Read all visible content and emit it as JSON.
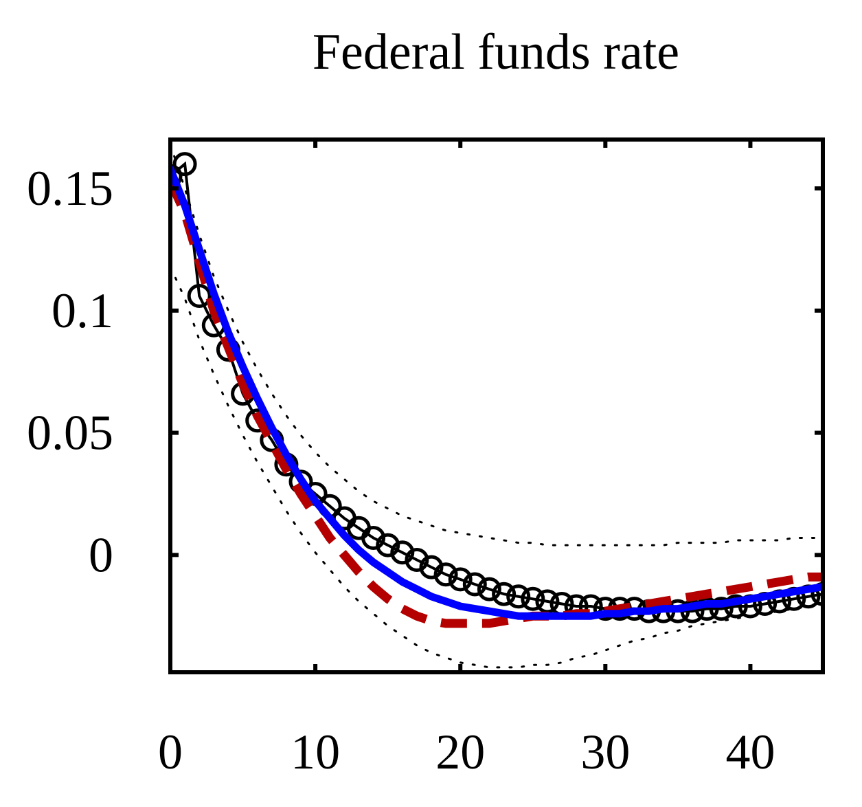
{
  "chart_data": {
    "type": "line",
    "title": "Federal funds rate",
    "xlabel": "",
    "ylabel": "",
    "xlim": [
      0,
      45
    ],
    "ylim": [
      -0.048,
      0.17
    ],
    "x_ticks": [
      0,
      10,
      20,
      30,
      40
    ],
    "x_tick_labels": [
      "0",
      "10",
      "20",
      "30",
      "40"
    ],
    "y_ticks": [
      0,
      0.05,
      0.1,
      0.15
    ],
    "y_tick_labels": [
      "0",
      "0.05",
      "0.1",
      "0.15"
    ],
    "grid": false,
    "legend": "none",
    "series": [
      {
        "style": "black-line-circles",
        "color": "#000000",
        "x": [
          0,
          1,
          2,
          3,
          4,
          5,
          6,
          7,
          8,
          9,
          10,
          11,
          12,
          13,
          14,
          15,
          16,
          17,
          18,
          19,
          20,
          21,
          22,
          23,
          24,
          25,
          26,
          27,
          28,
          29,
          30,
          31,
          32,
          33,
          34,
          35,
          36,
          37,
          38,
          39,
          40,
          41,
          42,
          43,
          44,
          45
        ],
        "values": [
          0.155,
          0.16,
          0.106,
          0.094,
          0.084,
          0.066,
          0.055,
          0.047,
          0.037,
          0.03,
          0.025,
          0.02,
          0.015,
          0.011,
          0.007,
          0.004,
          0.001,
          -0.002,
          -0.005,
          -0.008,
          -0.01,
          -0.012,
          -0.014,
          -0.016,
          -0.017,
          -0.018,
          -0.019,
          -0.02,
          -0.021,
          -0.021,
          -0.022,
          -0.022,
          -0.022,
          -0.023,
          -0.023,
          -0.023,
          -0.023,
          -0.022,
          -0.022,
          -0.021,
          -0.021,
          -0.02,
          -0.019,
          -0.018,
          -0.017,
          -0.016
        ]
      },
      {
        "style": "red-dashed",
        "color": "#b40000",
        "x": [
          0,
          1,
          2,
          3,
          4,
          5,
          6,
          7,
          8,
          9,
          10,
          11,
          12,
          13,
          14,
          15,
          16,
          17,
          18,
          19,
          20,
          21,
          22,
          23,
          24,
          25,
          26,
          27,
          28,
          29,
          30,
          31,
          32,
          33,
          34,
          35,
          36,
          37,
          38,
          39,
          40,
          41,
          42,
          43,
          44,
          45
        ],
        "values": [
          0.153,
          0.14,
          0.12,
          0.1,
          0.085,
          0.07,
          0.057,
          0.046,
          0.035,
          0.025,
          0.016,
          0.007,
          0.0,
          -0.007,
          -0.013,
          -0.018,
          -0.022,
          -0.025,
          -0.027,
          -0.028,
          -0.028,
          -0.028,
          -0.028,
          -0.027,
          -0.026,
          -0.025,
          -0.025,
          -0.025,
          -0.024,
          -0.024,
          -0.023,
          -0.022,
          -0.021,
          -0.02,
          -0.019,
          -0.018,
          -0.017,
          -0.016,
          -0.015,
          -0.014,
          -0.013,
          -0.012,
          -0.011,
          -0.01,
          -0.009,
          -0.009
        ]
      },
      {
        "style": "blue-solid",
        "color": "#0000ff",
        "x": [
          0,
          1,
          2,
          3,
          4,
          5,
          6,
          7,
          8,
          9,
          10,
          11,
          12,
          13,
          14,
          15,
          16,
          17,
          18,
          19,
          20,
          21,
          22,
          23,
          24,
          25,
          26,
          27,
          28,
          29,
          30,
          31,
          32,
          33,
          34,
          35,
          36,
          37,
          38,
          39,
          40,
          41,
          42,
          43,
          44,
          45
        ],
        "values": [
          0.158,
          0.143,
          0.125,
          0.107,
          0.091,
          0.077,
          0.064,
          0.052,
          0.041,
          0.031,
          0.022,
          0.015,
          0.008,
          0.002,
          -0.003,
          -0.007,
          -0.011,
          -0.014,
          -0.017,
          -0.019,
          -0.021,
          -0.022,
          -0.023,
          -0.024,
          -0.025,
          -0.025,
          -0.025,
          -0.025,
          -0.025,
          -0.025,
          -0.024,
          -0.024,
          -0.023,
          -0.023,
          -0.022,
          -0.022,
          -0.021,
          -0.02,
          -0.02,
          -0.019,
          -0.018,
          -0.017,
          -0.016,
          -0.015,
          -0.014,
          -0.013
        ]
      },
      {
        "style": "black-dotted-upper",
        "color": "#000000",
        "x": [
          0,
          1,
          2,
          3,
          4,
          5,
          6,
          7,
          8,
          9,
          10,
          11,
          12,
          13,
          14,
          15,
          16,
          17,
          18,
          19,
          20,
          21,
          22,
          23,
          24,
          25,
          26,
          27,
          28,
          29,
          30,
          31,
          32,
          33,
          34,
          35,
          36,
          37,
          38,
          39,
          40,
          41,
          42,
          43,
          44,
          45
        ],
        "values": [
          0.168,
          0.15,
          0.131,
          0.114,
          0.1,
          0.087,
          0.076,
          0.066,
          0.057,
          0.049,
          0.042,
          0.036,
          0.031,
          0.026,
          0.022,
          0.019,
          0.016,
          0.014,
          0.012,
          0.01,
          0.009,
          0.008,
          0.007,
          0.006,
          0.005,
          0.005,
          0.004,
          0.004,
          0.004,
          0.004,
          0.004,
          0.004,
          0.004,
          0.004,
          0.004,
          0.005,
          0.005,
          0.005,
          0.005,
          0.006,
          0.006,
          0.006,
          0.006,
          0.007,
          0.007,
          0.007
        ]
      },
      {
        "style": "black-dotted-lower",
        "color": "#000000",
        "x": [
          0,
          1,
          2,
          3,
          4,
          5,
          6,
          7,
          8,
          9,
          10,
          11,
          12,
          13,
          14,
          15,
          16,
          17,
          18,
          19,
          20,
          21,
          22,
          23,
          24,
          25,
          26,
          27,
          28,
          29,
          30,
          31,
          32,
          33,
          34,
          35,
          36,
          37,
          38,
          39,
          40,
          41,
          42,
          43,
          44,
          45
        ],
        "values": [
          0.118,
          0.105,
          0.088,
          0.074,
          0.061,
          0.049,
          0.038,
          0.028,
          0.018,
          0.009,
          0.001,
          -0.006,
          -0.013,
          -0.019,
          -0.024,
          -0.029,
          -0.033,
          -0.037,
          -0.04,
          -0.042,
          -0.044,
          -0.045,
          -0.046,
          -0.046,
          -0.046,
          -0.045,
          -0.045,
          -0.044,
          -0.042,
          -0.041,
          -0.039,
          -0.037,
          -0.035,
          -0.034,
          -0.032,
          -0.031,
          -0.029,
          -0.028,
          -0.027,
          -0.026,
          -0.025,
          -0.024,
          -0.023,
          -0.022,
          -0.021,
          -0.021
        ]
      }
    ]
  }
}
